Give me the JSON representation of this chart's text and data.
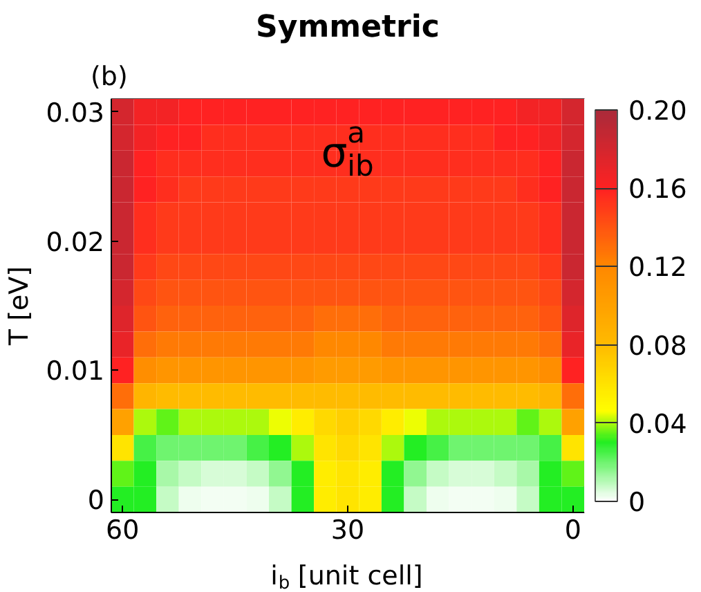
{
  "chart_data": {
    "type": "heatmap",
    "title": "Symmetric",
    "xlabel": "i$_{b}$ [unit cell]",
    "ylabel": "T [eV]",
    "annotations": [
      "(b)",
      "σ$^{a}$$_{ib}$"
    ],
    "clim": [
      0,
      0.2
    ],
    "cticks": [
      0,
      0.04,
      0.08,
      0.12,
      0.16,
      {
        "value": 0.2,
        "label": "0.20"
      }
    ],
    "grid": false,
    "categories": [
      "60",
      null,
      null,
      null,
      null,
      null,
      null,
      null,
      null,
      null,
      "30",
      null,
      null,
      null,
      null,
      null,
      null,
      null,
      null,
      null,
      "0"
    ],
    "y_categories": [
      "0.03",
      null,
      null,
      null,
      null,
      "0.02",
      null,
      null,
      null,
      null,
      "0.01",
      null,
      null,
      null,
      null,
      "0"
    ],
    "cells": [
      [
        0.18,
        0.165,
        0.165,
        0.16,
        0.16,
        0.16,
        0.16,
        0.16,
        0.16,
        0.16,
        0.16,
        0.16,
        0.16,
        0.16,
        0.16,
        0.16,
        0.16,
        0.16,
        0.165,
        0.165,
        0.18
      ],
      [
        0.18,
        0.165,
        0.16,
        0.16,
        0.155,
        0.155,
        0.155,
        0.155,
        0.155,
        0.155,
        0.155,
        0.155,
        0.155,
        0.155,
        0.155,
        0.155,
        0.155,
        0.16,
        0.16,
        0.165,
        0.18
      ],
      [
        0.185,
        0.16,
        0.155,
        0.155,
        0.155,
        0.155,
        0.155,
        0.155,
        0.155,
        0.155,
        0.155,
        0.155,
        0.155,
        0.155,
        0.155,
        0.155,
        0.155,
        0.155,
        0.155,
        0.16,
        0.185
      ],
      [
        0.185,
        0.16,
        0.155,
        0.15,
        0.15,
        0.15,
        0.15,
        0.15,
        0.15,
        0.15,
        0.15,
        0.15,
        0.15,
        0.15,
        0.15,
        0.15,
        0.15,
        0.15,
        0.155,
        0.16,
        0.185
      ],
      [
        0.185,
        0.155,
        0.15,
        0.15,
        0.15,
        0.15,
        0.15,
        0.15,
        0.15,
        0.15,
        0.15,
        0.15,
        0.15,
        0.15,
        0.15,
        0.15,
        0.15,
        0.15,
        0.15,
        0.155,
        0.185
      ],
      [
        0.185,
        0.155,
        0.15,
        0.15,
        0.15,
        0.15,
        0.15,
        0.15,
        0.15,
        0.15,
        0.15,
        0.15,
        0.15,
        0.15,
        0.15,
        0.15,
        0.15,
        0.15,
        0.15,
        0.155,
        0.185
      ],
      [
        0.185,
        0.15,
        0.145,
        0.145,
        0.145,
        0.145,
        0.145,
        0.145,
        0.145,
        0.145,
        0.145,
        0.145,
        0.145,
        0.145,
        0.145,
        0.145,
        0.145,
        0.145,
        0.145,
        0.15,
        0.185
      ],
      [
        0.18,
        0.145,
        0.14,
        0.14,
        0.14,
        0.14,
        0.14,
        0.14,
        0.14,
        0.14,
        0.14,
        0.14,
        0.14,
        0.14,
        0.14,
        0.14,
        0.14,
        0.14,
        0.14,
        0.145,
        0.18
      ],
      [
        0.175,
        0.14,
        0.135,
        0.135,
        0.135,
        0.135,
        0.135,
        0.135,
        0.135,
        0.13,
        0.13,
        0.13,
        0.135,
        0.135,
        0.135,
        0.135,
        0.135,
        0.135,
        0.135,
        0.14,
        0.175
      ],
      [
        0.17,
        0.13,
        0.125,
        0.125,
        0.125,
        0.125,
        0.125,
        0.125,
        0.125,
        0.12,
        0.12,
        0.12,
        0.125,
        0.125,
        0.125,
        0.125,
        0.125,
        0.125,
        0.125,
        0.13,
        0.17
      ],
      [
        0.16,
        0.115,
        0.11,
        0.11,
        0.11,
        0.11,
        0.11,
        0.11,
        0.11,
        0.105,
        0.105,
        0.105,
        0.11,
        0.11,
        0.11,
        0.11,
        0.11,
        0.11,
        0.11,
        0.115,
        0.16
      ],
      [
        0.13,
        0.085,
        0.08,
        0.08,
        0.08,
        0.08,
        0.08,
        0.08,
        0.08,
        0.08,
        0.08,
        0.08,
        0.08,
        0.08,
        0.08,
        0.08,
        0.08,
        0.08,
        0.08,
        0.085,
        0.13
      ],
      [
        0.1,
        0.04,
        0.035,
        0.04,
        0.04,
        0.04,
        0.04,
        0.045,
        0.055,
        0.065,
        0.07,
        0.065,
        0.055,
        0.045,
        0.04,
        0.04,
        0.04,
        0.04,
        0.035,
        0.04,
        0.1
      ],
      [
        0.06,
        0.025,
        0.02,
        0.02,
        0.02,
        0.02,
        0.025,
        0.03,
        0.04,
        0.06,
        0.065,
        0.06,
        0.04,
        0.03,
        0.025,
        0.02,
        0.02,
        0.02,
        0.02,
        0.025,
        0.06
      ],
      [
        0.035,
        0.03,
        0.012,
        0.008,
        0.006,
        0.006,
        0.008,
        0.015,
        0.03,
        0.055,
        0.06,
        0.055,
        0.03,
        0.015,
        0.008,
        0.006,
        0.006,
        0.008,
        0.012,
        0.03,
        0.035
      ],
      [
        0.03,
        0.03,
        0.008,
        0.003,
        0.002,
        0.002,
        0.003,
        0.008,
        0.03,
        0.055,
        0.06,
        0.055,
        0.03,
        0.008,
        0.003,
        0.002,
        0.002,
        0.003,
        0.008,
        0.03,
        0.03
      ]
    ]
  }
}
